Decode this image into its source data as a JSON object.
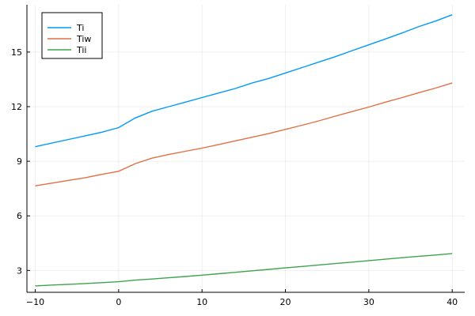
{
  "chart_data": {
    "type": "line",
    "title": "",
    "xlabel": "",
    "ylabel": "",
    "xlim": [
      -11,
      41.5
    ],
    "ylim": [
      1.8,
      17.6
    ],
    "xticks": [
      -10,
      0,
      10,
      20,
      30,
      40
    ],
    "yticks": [
      3,
      6,
      9,
      12,
      15
    ],
    "xtick_labels": [
      "−10",
      "0",
      "10",
      "20",
      "30",
      "40"
    ],
    "ytick_labels": [
      "3",
      "6",
      "9",
      "12",
      "15"
    ],
    "grid": true,
    "legend_position": "top-left",
    "series": [
      {
        "name": "Ti",
        "color": "#009AFA",
        "x": [
          -10,
          -8,
          -6,
          -4,
          -2,
          0,
          2,
          4,
          6,
          8,
          10,
          12,
          14,
          16,
          18,
          20,
          22,
          24,
          26,
          28,
          30,
          32,
          34,
          36,
          38,
          40
        ],
        "y": [
          9.8,
          10.0,
          10.2,
          10.4,
          10.6,
          10.85,
          11.38,
          11.75,
          12.0,
          12.25,
          12.5,
          12.75,
          13.0,
          13.3,
          13.55,
          13.85,
          14.15,
          14.45,
          14.75,
          15.08,
          15.4,
          15.72,
          16.05,
          16.4,
          16.7,
          17.05
        ]
      },
      {
        "name": "Tiw",
        "color": "#E26F46",
        "x": [
          -10,
          -8,
          -6,
          -4,
          -2,
          0,
          2,
          4,
          6,
          8,
          10,
          12,
          14,
          16,
          18,
          20,
          22,
          24,
          26,
          28,
          30,
          32,
          34,
          36,
          38,
          40
        ],
        "y": [
          7.65,
          7.8,
          7.95,
          8.1,
          8.28,
          8.45,
          8.87,
          9.17,
          9.37,
          9.55,
          9.72,
          9.92,
          10.12,
          10.32,
          10.52,
          10.75,
          10.98,
          11.22,
          11.48,
          11.73,
          11.98,
          12.25,
          12.5,
          12.77,
          13.02,
          13.3
        ]
      },
      {
        "name": "Tii",
        "color": "#3DA44D",
        "x": [
          -10,
          -8,
          -6,
          -4,
          -2,
          0,
          2,
          4,
          6,
          8,
          10,
          12,
          14,
          16,
          18,
          20,
          22,
          24,
          26,
          28,
          30,
          32,
          34,
          36,
          38,
          40
        ],
        "y": [
          2.15,
          2.2,
          2.24,
          2.28,
          2.33,
          2.38,
          2.47,
          2.53,
          2.6,
          2.67,
          2.74,
          2.82,
          2.9,
          2.98,
          3.06,
          3.14,
          3.22,
          3.3,
          3.38,
          3.46,
          3.54,
          3.62,
          3.7,
          3.78,
          3.85,
          3.93
        ]
      }
    ]
  }
}
